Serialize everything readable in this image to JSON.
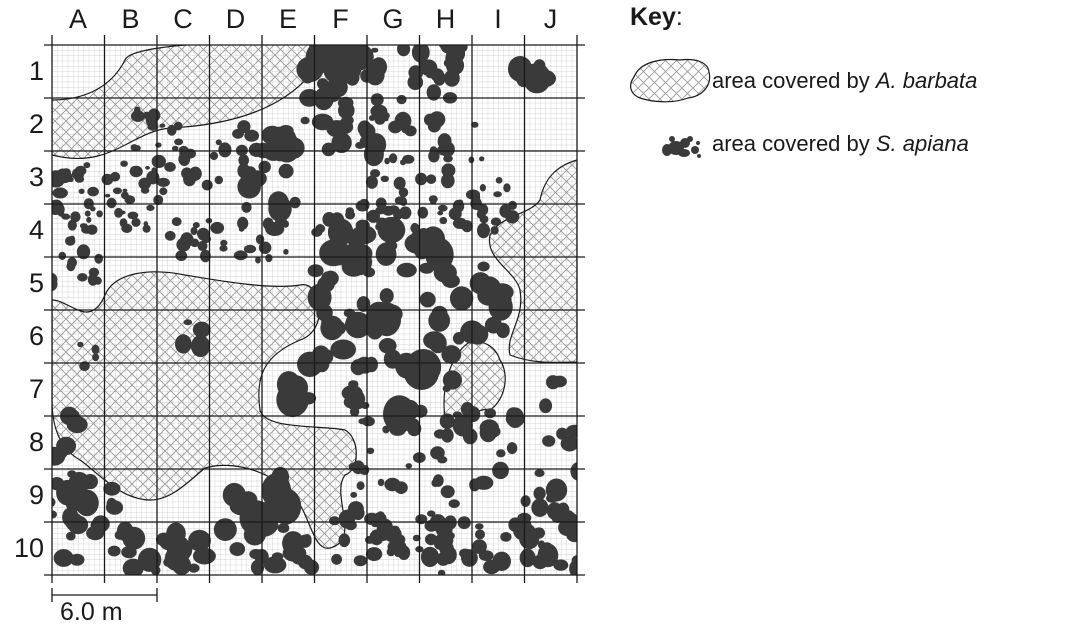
{
  "columns": [
    "A",
    "B",
    "C",
    "D",
    "E",
    "F",
    "G",
    "H",
    "I",
    "J"
  ],
  "rows": [
    "1",
    "2",
    "3",
    "4",
    "5",
    "6",
    "7",
    "8",
    "9",
    "10"
  ],
  "scale_bar": {
    "label": "6.0 m"
  },
  "key": {
    "title": "Key",
    "title_suffix": ":",
    "items": [
      {
        "prefix": "area covered by ",
        "species": "A. barbata",
        "symbol": "hatched-region"
      },
      {
        "prefix": "area covered by ",
        "species": "S. apiana",
        "symbol": "dark-blobs"
      }
    ]
  },
  "colors": {
    "grid_fine": "#b8b8b8",
    "grid_major": "#1a1a1a",
    "hatch": "#9a9a9a",
    "shrub": "#3a3a3a"
  }
}
